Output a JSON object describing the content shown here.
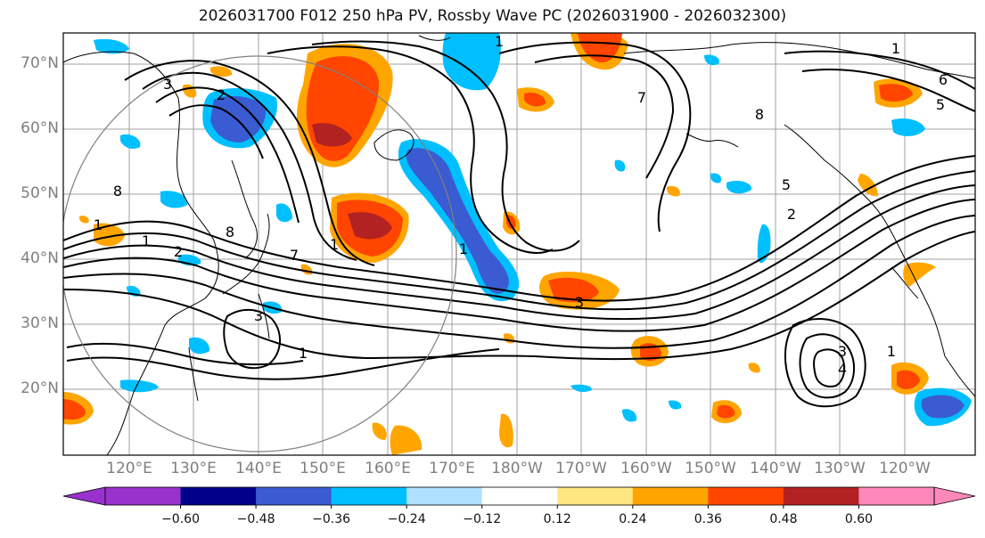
{
  "title": "2026031700 F012 250 hPa PV, Rossby Wave PC (2026031900 - 2026032300)",
  "lat_labels": [
    "70°N",
    "60°N",
    "50°N",
    "40°N",
    "30°N",
    "20°N"
  ],
  "lon_labels": [
    "120°E",
    "130°E",
    "140°E",
    "150°E",
    "160°E",
    "170°E",
    "180°W",
    "170°W",
    "160°W",
    "150°W",
    "140°W",
    "130°W",
    "120°W"
  ],
  "contour_labels": [
    "3",
    "2",
    "1",
    "7",
    "8",
    "8",
    "1",
    "3",
    "1",
    "2",
    "8",
    "5",
    "6",
    "5",
    "1",
    "1",
    "1",
    "3",
    "4",
    "3",
    "7",
    "1",
    "2",
    "1"
  ],
  "colorbar": {
    "tick_labels": [
      "−0.60",
      "−0.48",
      "−0.36",
      "−0.24",
      "−0.12",
      "0.12",
      "0.24",
      "0.36",
      "0.48",
      "0.60"
    ],
    "colors": [
      "#9932CC",
      "#00008B",
      "#3A5BD1",
      "#00BFFF",
      "#B0E0FF",
      "#FFFFFF",
      "#FFE680",
      "#FFA500",
      "#FF4500",
      "#B22222",
      "#FF88BB"
    ]
  },
  "colors": {
    "pos_light": "#FFE680",
    "pos_mid": "#FFA500",
    "pos_strong": "#FF4500",
    "pos_max": "#B22222",
    "neg_light": "#00BFFF",
    "neg_mid": "#3A5BD1",
    "neg_strong": "#00008B",
    "grid": "#a0a0a0",
    "coast": "#000000"
  }
}
